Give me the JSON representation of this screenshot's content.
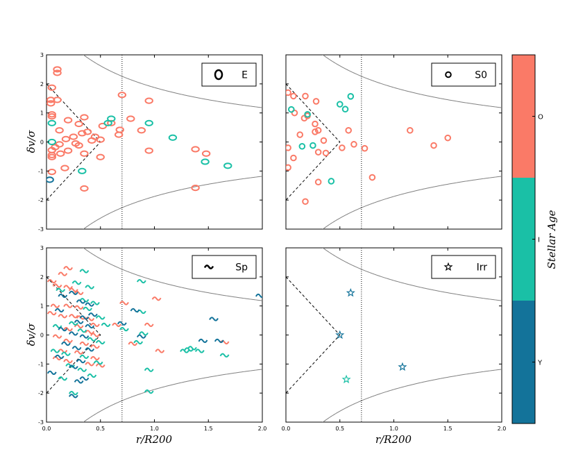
{
  "chart_data": {
    "type": "scatter",
    "layout": "2x2",
    "shared_axes": {
      "xlabel": "r/R200",
      "ylabel": "δv/σ",
      "xlim": [
        0.0,
        2.0
      ],
      "ylim": [
        -3,
        3
      ],
      "xticks": [
        "0.0",
        "0.5",
        "1.0",
        "1.5",
        "2.0"
      ],
      "yticks": [
        "3",
        "2",
        "1",
        "0",
        "-1",
        "-2",
        "-3"
      ],
      "vline_x": 0.7,
      "dashed_region": [
        [
          0.0,
          2.0
        ],
        [
          0.5,
          0.0
        ],
        [
          0.0,
          -2.0
        ]
      ],
      "caustic": "±1/sqrt(x)-like envelope"
    },
    "colorbar": {
      "label": "Stellar Age",
      "categories": [
        {
          "label": "O",
          "color": "#FA7A67"
        },
        {
          "label": "I",
          "color": "#1AC0A6"
        },
        {
          "label": "Y",
          "color": "#13739A"
        }
      ]
    },
    "panels": [
      {
        "legend": "E",
        "marker": "ellipse",
        "show_xticks": false,
        "show_yticks": true,
        "series": [
          {
            "name": "O",
            "points": [
              [
                0.1,
                2.5
              ],
              [
                0.1,
                2.38
              ],
              [
                0.05,
                1.87
              ],
              [
                0.1,
                1.45
              ],
              [
                0.04,
                1.45
              ],
              [
                0.04,
                1.33
              ],
              [
                0.05,
                0.95
              ],
              [
                0.05,
                0.88
              ],
              [
                0.12,
                0.4
              ],
              [
                0.2,
                0.75
              ],
              [
                0.35,
                0.85
              ],
              [
                0.3,
                0.62
              ],
              [
                0.38,
                0.35
              ],
              [
                0.33,
                0.3
              ],
              [
                0.25,
                0.18
              ],
              [
                0.18,
                0.1
              ],
              [
                0.12,
                -0.08
              ],
              [
                0.08,
                -0.18
              ],
              [
                0.05,
                -0.28
              ],
              [
                0.05,
                -0.45
              ],
              [
                0.05,
                -0.52
              ],
              [
                0.13,
                -0.4
              ],
              [
                0.2,
                -0.3
              ],
              [
                0.27,
                -0.05
              ],
              [
                0.3,
                -0.12
              ],
              [
                0.35,
                -0.4
              ],
              [
                0.42,
                0.05
              ],
              [
                0.45,
                0.18
              ],
              [
                0.5,
                0.08
              ],
              [
                0.52,
                0.55
              ],
              [
                0.6,
                0.65
              ],
              [
                0.68,
                0.42
              ],
              [
                0.7,
                1.62
              ],
              [
                0.78,
                0.8
              ],
              [
                0.88,
                0.4
              ],
              [
                0.95,
                1.42
              ],
              [
                0.95,
                -0.3
              ],
              [
                0.5,
                -0.52
              ],
              [
                0.17,
                -0.9
              ],
              [
                0.05,
                -1.03
              ],
              [
                0.35,
                -1.6
              ],
              [
                1.38,
                -0.25
              ],
              [
                1.48,
                -0.4
              ],
              [
                1.38,
                -1.58
              ],
              [
                0.67,
                0.25
              ]
            ]
          },
          {
            "name": "I",
            "points": [
              [
                0.05,
                0.0
              ],
              [
                0.05,
                0.65
              ],
              [
                0.6,
                0.8
              ],
              [
                0.57,
                0.65
              ],
              [
                0.95,
                0.65
              ],
              [
                1.17,
                0.15
              ],
              [
                1.47,
                -0.68
              ],
              [
                1.68,
                -0.82
              ],
              [
                0.33,
                -1.0
              ]
            ]
          },
          {
            "name": "Y",
            "points": [
              [
                0.03,
                -1.3
              ]
            ]
          }
        ]
      },
      {
        "legend": "S0",
        "marker": "circle",
        "show_xticks": false,
        "show_yticks": false,
        "series": [
          {
            "name": "O",
            "points": [
              [
                0.02,
                1.7
              ],
              [
                0.07,
                1.58
              ],
              [
                0.18,
                1.58
              ],
              [
                0.28,
                1.4
              ],
              [
                0.08,
                1.0
              ],
              [
                0.2,
                0.9
              ],
              [
                0.17,
                0.82
              ],
              [
                0.27,
                0.62
              ],
              [
                0.3,
                0.4
              ],
              [
                0.27,
                0.35
              ],
              [
                0.13,
                0.25
              ],
              [
                0.58,
                0.4
              ],
              [
                0.35,
                0.05
              ],
              [
                0.02,
                -0.2
              ],
              [
                0.07,
                -0.55
              ],
              [
                0.02,
                -0.88
              ],
              [
                0.3,
                -0.35
              ],
              [
                0.37,
                -0.38
              ],
              [
                0.52,
                -0.2
              ],
              [
                0.63,
                -0.08
              ],
              [
                0.73,
                -0.22
              ],
              [
                0.3,
                -1.38
              ],
              [
                0.8,
                -1.22
              ],
              [
                0.18,
                -2.05
              ],
              [
                1.15,
                0.4
              ],
              [
                1.37,
                -0.12
              ],
              [
                1.5,
                0.14
              ]
            ]
          },
          {
            "name": "I",
            "points": [
              [
                0.6,
                1.57
              ],
              [
                0.05,
                1.12
              ],
              [
                0.2,
                0.95
              ],
              [
                0.5,
                1.3
              ],
              [
                0.55,
                1.13
              ],
              [
                0.15,
                -0.15
              ],
              [
                0.25,
                -0.12
              ],
              [
                0.42,
                -1.35
              ]
            ]
          }
        ]
      },
      {
        "legend": "Sp",
        "marker": "wave",
        "show_xticks": true,
        "show_yticks": true,
        "series": [
          {
            "name": "O",
            "points": [
              [
                0.2,
                2.3
              ],
              [
                0.15,
                2.1
              ],
              [
                0.05,
                1.85
              ],
              [
                0.1,
                1.7
              ],
              [
                0.2,
                1.65
              ],
              [
                0.25,
                1.55
              ],
              [
                0.3,
                1.45
              ],
              [
                0.08,
                1.0
              ],
              [
                0.2,
                1.0
              ],
              [
                0.3,
                0.95
              ],
              [
                0.05,
                0.75
              ],
              [
                0.15,
                0.65
              ],
              [
                0.25,
                0.65
              ],
              [
                0.32,
                0.6
              ],
              [
                0.4,
                0.55
              ],
              [
                0.45,
                0.35
              ],
              [
                0.2,
                0.2
              ],
              [
                0.3,
                0.3
              ],
              [
                0.4,
                0.1
              ],
              [
                0.45,
                0.0
              ],
              [
                0.1,
                -0.05
              ],
              [
                0.2,
                -0.2
              ],
              [
                0.35,
                -0.3
              ],
              [
                0.45,
                -0.4
              ],
              [
                0.15,
                -0.55
              ],
              [
                0.3,
                -0.6
              ],
              [
                0.45,
                -0.8
              ],
              [
                0.1,
                -0.8
              ],
              [
                0.2,
                -0.9
              ],
              [
                0.4,
                -1.0
              ],
              [
                0.5,
                -1.05
              ],
              [
                0.72,
                1.1
              ],
              [
                1.02,
                1.25
              ],
              [
                0.65,
                0.35
              ],
              [
                0.95,
                0.35
              ],
              [
                1.05,
                -0.55
              ],
              [
                1.65,
                -0.25
              ],
              [
                0.8,
                -0.3
              ]
            ]
          },
          {
            "name": "I",
            "points": [
              [
                0.35,
                2.2
              ],
              [
                0.28,
                1.8
              ],
              [
                0.4,
                1.65
              ],
              [
                0.13,
                1.55
              ],
              [
                0.35,
                1.2
              ],
              [
                0.45,
                1.1
              ],
              [
                0.38,
                0.9
              ],
              [
                0.5,
                0.6
              ],
              [
                0.55,
                0.35
              ],
              [
                0.25,
                0.4
              ],
              [
                0.33,
                0.15
              ],
              [
                0.1,
                0.3
              ],
              [
                0.42,
                -0.15
              ],
              [
                0.5,
                -0.25
              ],
              [
                0.08,
                -0.55
              ],
              [
                0.18,
                -0.65
              ],
              [
                0.35,
                -0.75
              ],
              [
                0.48,
                -0.95
              ],
              [
                0.22,
                -1.05
              ],
              [
                0.33,
                -1.2
              ],
              [
                0.42,
                -1.4
              ],
              [
                0.15,
                -1.5
              ],
              [
                0.25,
                -2.0
              ],
              [
                0.88,
                1.85
              ],
              [
                0.88,
                0.8
              ],
              [
                0.72,
                0.2
              ],
              [
                0.9,
                0.05
              ],
              [
                0.85,
                -0.25
              ],
              [
                1.28,
                -0.55
              ],
              [
                1.32,
                -0.5
              ],
              [
                1.42,
                -0.55
              ],
              [
                1.65,
                -0.7
              ],
              [
                0.95,
                -1.2
              ],
              [
                0.95,
                -1.95
              ],
              [
                1.35,
                -0.45
              ]
            ]
          },
          {
            "name": "Y",
            "points": [
              [
                0.25,
                1.45
              ],
              [
                0.15,
                1.35
              ],
              [
                0.32,
                1.15
              ],
              [
                0.4,
                1.05
              ],
              [
                0.12,
                0.85
              ],
              [
                0.35,
                0.6
              ],
              [
                0.43,
                0.7
              ],
              [
                0.3,
                0.45
              ],
              [
                0.15,
                0.2
              ],
              [
                0.4,
                0.3
              ],
              [
                0.25,
                0.05
              ],
              [
                0.35,
                -0.05
              ],
              [
                0.18,
                -0.3
              ],
              [
                0.28,
                -0.45
              ],
              [
                0.4,
                -0.5
              ],
              [
                0.12,
                -0.75
              ],
              [
                0.32,
                -0.9
              ],
              [
                0.25,
                -1.1
              ],
              [
                0.05,
                -1.3
              ],
              [
                0.35,
                -1.5
              ],
              [
                0.3,
                -1.6
              ],
              [
                0.25,
                -2.1
              ],
              [
                0.7,
                0.4
              ],
              [
                0.88,
                -0.05
              ],
              [
                0.82,
                0.85
              ],
              [
                1.55,
                0.55
              ],
              [
                1.6,
                -0.2
              ],
              [
                1.45,
                -0.2
              ],
              [
                1.98,
                1.35
              ]
            ]
          }
        ]
      },
      {
        "legend": "Irr",
        "marker": "star",
        "show_xticks": true,
        "show_yticks": false,
        "series": [
          {
            "name": "I",
            "points": [
              [
                0.56,
                -1.53
              ]
            ]
          },
          {
            "name": "Y",
            "points": [
              [
                0.6,
                1.45
              ],
              [
                0.5,
                0.0
              ],
              [
                1.08,
                -1.1
              ]
            ]
          }
        ]
      }
    ]
  }
}
